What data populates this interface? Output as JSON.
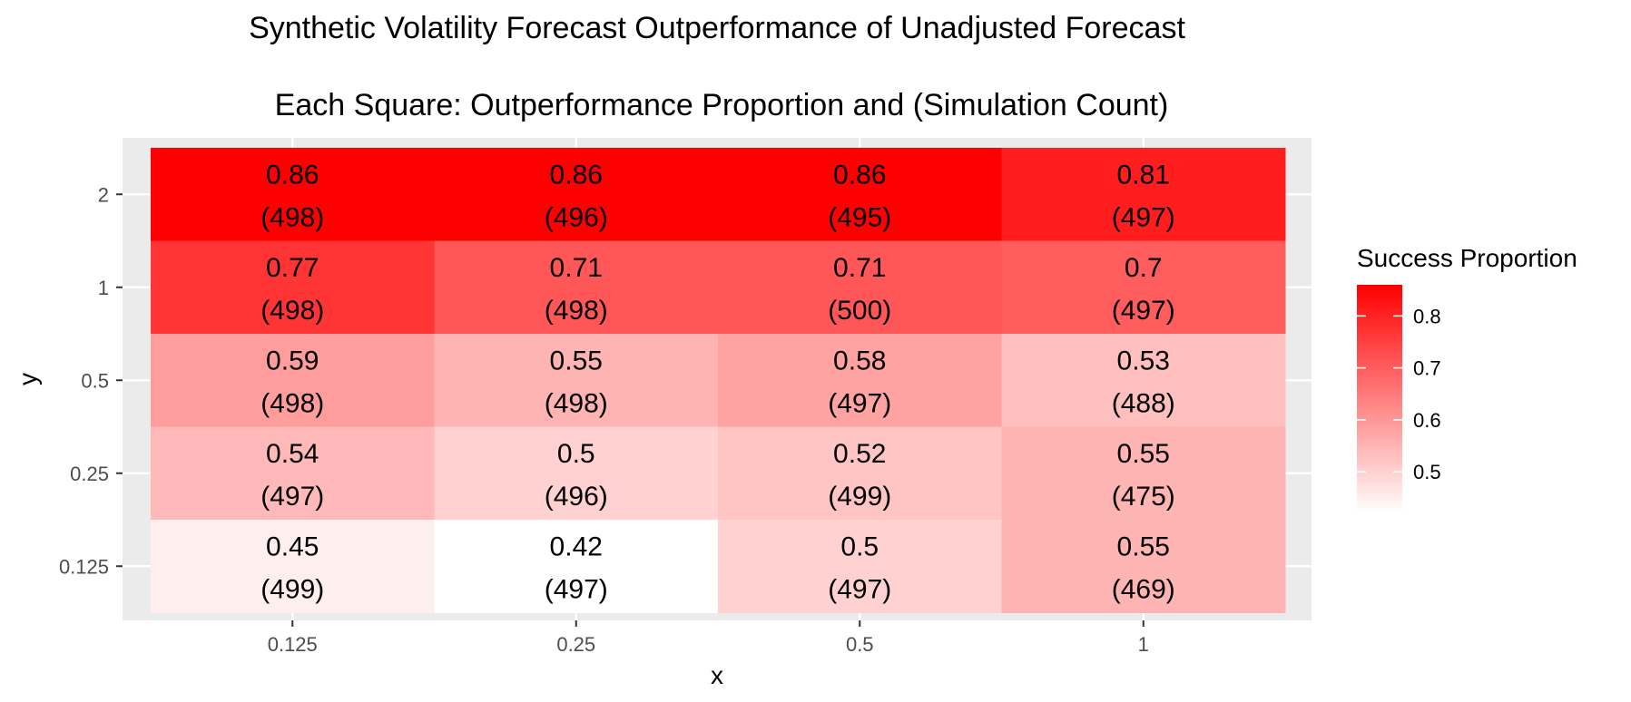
{
  "chart_data": {
    "type": "heatmap",
    "title": "Synthetic Volatility Forecast Outperformance of Unadjusted Forecast",
    "subtitle": "Each Square: Outperformance Proportion and (Simulation Count)",
    "xlabel": "x",
    "ylabel": "y",
    "x_categories": [
      "0.125",
      "0.25",
      "0.5",
      "1"
    ],
    "y_categories": [
      "0.125",
      "0.25",
      "0.5",
      "1",
      "2"
    ],
    "cells": [
      {
        "x": "0.125",
        "y": "2",
        "value": 0.86,
        "count": 498
      },
      {
        "x": "0.25",
        "y": "2",
        "value": 0.86,
        "count": 496
      },
      {
        "x": "0.5",
        "y": "2",
        "value": 0.86,
        "count": 495
      },
      {
        "x": "1",
        "y": "2",
        "value": 0.81,
        "count": 497
      },
      {
        "x": "0.125",
        "y": "1",
        "value": 0.77,
        "count": 498
      },
      {
        "x": "0.25",
        "y": "1",
        "value": 0.71,
        "count": 498
      },
      {
        "x": "0.5",
        "y": "1",
        "value": 0.71,
        "count": 500
      },
      {
        "x": "1",
        "y": "1",
        "value": 0.7,
        "count": 497
      },
      {
        "x": "0.125",
        "y": "0.5",
        "value": 0.59,
        "count": 498
      },
      {
        "x": "0.25",
        "y": "0.5",
        "value": 0.55,
        "count": 498
      },
      {
        "x": "0.5",
        "y": "0.5",
        "value": 0.58,
        "count": 497
      },
      {
        "x": "1",
        "y": "0.5",
        "value": 0.53,
        "count": 488
      },
      {
        "x": "0.125",
        "y": "0.25",
        "value": 0.54,
        "count": 497
      },
      {
        "x": "0.25",
        "y": "0.25",
        "value": 0.5,
        "count": 496
      },
      {
        "x": "0.5",
        "y": "0.25",
        "value": 0.52,
        "count": 499
      },
      {
        "x": "1",
        "y": "0.25",
        "value": 0.55,
        "count": 475
      },
      {
        "x": "0.125",
        "y": "0.125",
        "value": 0.45,
        "count": 499
      },
      {
        "x": "0.25",
        "y": "0.125",
        "value": 0.42,
        "count": 497
      },
      {
        "x": "0.5",
        "y": "0.125",
        "value": 0.5,
        "count": 497
      },
      {
        "x": "1",
        "y": "0.125",
        "value": 0.55,
        "count": 469
      }
    ],
    "color_scale": {
      "low": "#FFFFFF",
      "high": "#FF0000",
      "domain": [
        0.42,
        0.86
      ]
    },
    "legend": {
      "title": "Success Proportion",
      "ticks": [
        "0.5",
        "0.6",
        "0.7",
        "0.8"
      ],
      "position": "right"
    },
    "panel_background": "#EBEBEB",
    "grid": true
  }
}
